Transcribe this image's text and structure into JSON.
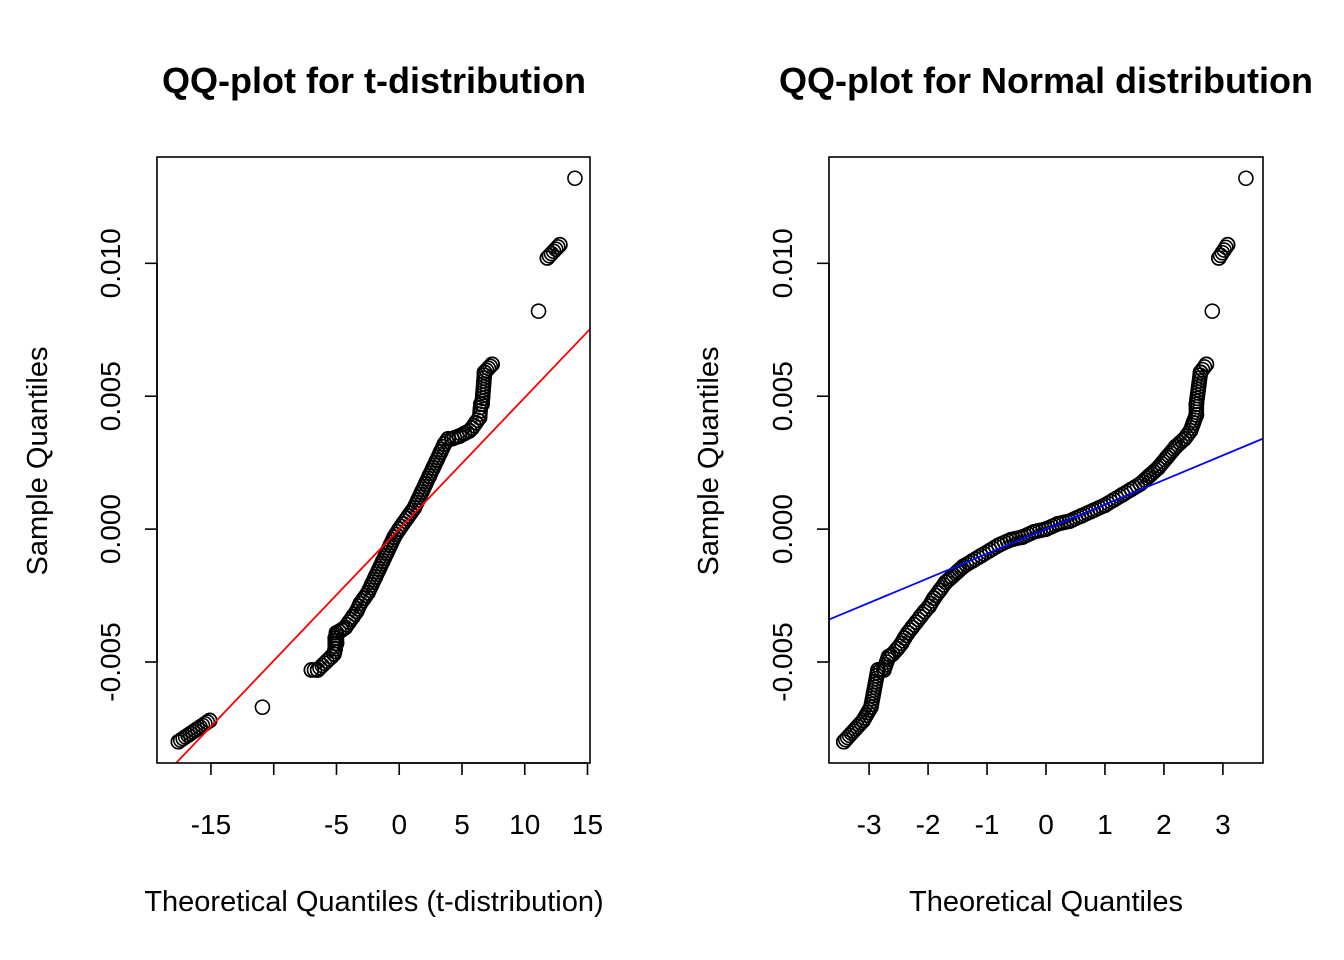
{
  "chart_data": [
    {
      "type": "scatter",
      "title": "QQ-plot for t-distribution",
      "xlabel": "Theoretical Quantiles (t-distribution)",
      "ylabel": "Sample Quantiles",
      "xlim": [
        -19.3,
        15.2
      ],
      "ylim": [
        -0.0088,
        0.014
      ],
      "xticks": [
        -15,
        -10,
        -5,
        0,
        5,
        10,
        15
      ],
      "xtick_labels": [
        "-15",
        "",
        "-5",
        "0",
        "5",
        "10",
        "15"
      ],
      "yticks": [
        -0.005,
        0.0,
        0.005,
        0.01
      ],
      "ytick_labels": [
        "-0.005",
        "0.000",
        "0.005",
        "0.010"
      ],
      "grid": false,
      "reference_line": {
        "color": "#ff0000",
        "slope": 0.000495,
        "intercept": 0.0,
        "description": "red reference line"
      },
      "points": [
        [
          -17.6,
          -0.008
        ],
        [
          -15.1,
          -0.0072
        ],
        [
          -10.9,
          -0.0067
        ],
        [
          -7.0,
          -0.0053
        ],
        [
          -6.5,
          -0.0053
        ],
        [
          -5.4,
          -0.0048
        ],
        [
          -5.2,
          -0.0047
        ],
        [
          -5.1,
          -0.0045
        ],
        [
          -5.0,
          -0.0043
        ],
        [
          -5.1,
          -0.0041
        ],
        [
          -5.0,
          -0.0039
        ],
        [
          -4.6,
          -0.0038
        ],
        [
          -4.3,
          -0.0037
        ],
        [
          -4.0,
          -0.0035
        ],
        [
          -3.7,
          -0.0033
        ],
        [
          -3.4,
          -0.0031
        ],
        [
          -3.1,
          -0.0028
        ],
        [
          -2.8,
          -0.0026
        ],
        [
          -2.5,
          -0.0024
        ],
        [
          -2.2,
          -0.0021
        ],
        [
          -1.9,
          -0.0018
        ],
        [
          -1.6,
          -0.0015
        ],
        [
          -1.3,
          -0.0012
        ],
        [
          -1.0,
          -0.0009
        ],
        [
          -0.7,
          -0.0006
        ],
        [
          -0.4,
          -0.0003
        ],
        [
          0.0,
          0.0
        ],
        [
          0.3,
          0.0002
        ],
        [
          0.6,
          0.0004
        ],
        [
          0.9,
          0.0006
        ],
        [
          1.2,
          0.0008
        ],
        [
          1.5,
          0.0011
        ],
        [
          1.8,
          0.0014
        ],
        [
          2.1,
          0.0017
        ],
        [
          2.4,
          0.002
        ],
        [
          2.7,
          0.0023
        ],
        [
          3.0,
          0.0026
        ],
        [
          3.3,
          0.0029
        ],
        [
          3.6,
          0.0032
        ],
        [
          3.9,
          0.0034
        ],
        [
          4.2,
          0.0034
        ],
        [
          4.8,
          0.0035
        ],
        [
          5.2,
          0.0036
        ],
        [
          5.6,
          0.0037
        ],
        [
          5.8,
          0.0038
        ],
        [
          6.1,
          0.004
        ],
        [
          6.4,
          0.0042
        ],
        [
          6.5,
          0.0047
        ],
        [
          6.6,
          0.0047
        ],
        [
          6.8,
          0.0059
        ],
        [
          7.4,
          0.0062
        ],
        [
          11.1,
          0.0082
        ],
        [
          11.8,
          0.0102
        ],
        [
          12.8,
          0.0107
        ],
        [
          14.0,
          0.0132
        ]
      ],
      "band": [
        [
          -5.0,
          -0.0045
        ],
        [
          4.2,
          0.0034
        ]
      ]
    },
    {
      "type": "scatter",
      "title": "QQ-plot for Normal distribution",
      "xlabel": "Theoretical Quantiles",
      "ylabel": "Sample Quantiles",
      "xlim": [
        -3.68,
        3.68
      ],
      "ylim": [
        -0.0088,
        0.014
      ],
      "xticks": [
        -3,
        -2,
        -1,
        0,
        1,
        2,
        3
      ],
      "xtick_labels": [
        "-3",
        "-2",
        "-1",
        "0",
        "1",
        "2",
        "3"
      ],
      "yticks": [
        -0.005,
        0.0,
        0.005,
        0.01
      ],
      "ytick_labels": [
        "-0.005",
        "0.000",
        "0.005",
        "0.010"
      ],
      "grid": false,
      "reference_line": {
        "color": "#0000ff",
        "slope": 0.000925,
        "intercept": 0.0
      },
      "points": [
        [
          -3.43,
          -0.008
        ],
        [
          -3.1,
          -0.0072
        ],
        [
          -2.97,
          -0.0067
        ],
        [
          -2.85,
          -0.0053
        ],
        [
          -2.75,
          -0.0053
        ],
        [
          -2.67,
          -0.0048
        ],
        [
          -2.6,
          -0.0047
        ],
        [
          -2.52,
          -0.0045
        ],
        [
          -2.45,
          -0.0043
        ],
        [
          -2.4,
          -0.0041
        ],
        [
          -2.34,
          -0.0039
        ],
        [
          -2.27,
          -0.0037
        ],
        [
          -2.2,
          -0.0035
        ],
        [
          -2.13,
          -0.0033
        ],
        [
          -2.06,
          -0.0031
        ],
        [
          -1.98,
          -0.0029
        ],
        [
          -1.9,
          -0.0026
        ],
        [
          -1.8,
          -0.0023
        ],
        [
          -1.7,
          -0.002
        ],
        [
          -1.6,
          -0.0018
        ],
        [
          -1.5,
          -0.0016
        ],
        [
          -1.4,
          -0.0014
        ],
        [
          -1.25,
          -0.0012
        ],
        [
          -1.1,
          -0.001
        ],
        [
          -0.95,
          -0.0008
        ],
        [
          -0.8,
          -0.0006
        ],
        [
          -0.6,
          -0.0004
        ],
        [
          -0.4,
          -0.0003
        ],
        [
          -0.2,
          -0.0001
        ],
        [
          0.0,
          0.0
        ],
        [
          0.2,
          0.0002
        ],
        [
          0.4,
          0.0003
        ],
        [
          0.6,
          0.0005
        ],
        [
          0.8,
          0.0007
        ],
        [
          1.0,
          0.0009
        ],
        [
          1.15,
          0.0011
        ],
        [
          1.3,
          0.0013
        ],
        [
          1.45,
          0.0015
        ],
        [
          1.6,
          0.0017
        ],
        [
          1.75,
          0.002
        ],
        [
          1.9,
          0.0023
        ],
        [
          2.05,
          0.0027
        ],
        [
          2.2,
          0.0031
        ],
        [
          2.35,
          0.0034
        ],
        [
          2.45,
          0.0037
        ],
        [
          2.5,
          0.004
        ],
        [
          2.55,
          0.0043
        ],
        [
          2.55,
          0.0047
        ],
        [
          2.62,
          0.0059
        ],
        [
          2.72,
          0.0062
        ],
        [
          2.82,
          0.0082
        ],
        [
          2.93,
          0.0102
        ],
        [
          3.08,
          0.0107
        ],
        [
          3.39,
          0.0132
        ]
      ]
    }
  ]
}
